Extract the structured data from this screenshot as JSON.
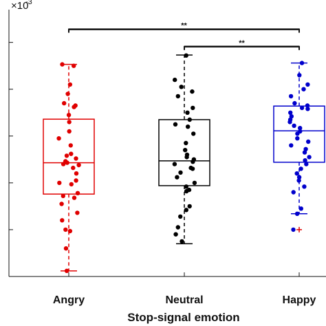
{
  "chart_data": {
    "type": "box",
    "xlabel": "Stop-signal emotion",
    "ylabel": "",
    "y_multiplier_label": "×10",
    "y_multiplier_exponent": "-3",
    "categories": [
      "Angry",
      "Neutral",
      "Happy"
    ],
    "ylim": [
      0,
      5.7
    ],
    "y_tick_values": [
      1,
      2,
      3,
      4,
      5
    ],
    "y_tick_labels_visible": false,
    "grid": false,
    "colors": {
      "Angry": "#e00000",
      "Neutral": "#000000",
      "Happy": "#0000cc",
      "outlier": "#e00000"
    },
    "boxes": [
      {
        "category": "Angry",
        "whisker_low": 0.12,
        "q1": 1.76,
        "median": 2.43,
        "q3": 3.36,
        "whisker_high": 4.53,
        "outliers": [],
        "points": [
          4.53,
          4.5,
          4.1,
          3.9,
          3.7,
          3.65,
          3.62,
          3.45,
          3.3,
          3.1,
          2.95,
          2.8,
          2.62,
          2.58,
          2.52,
          2.46,
          2.43,
          2.4,
          2.38,
          2.32,
          2.2,
          2.05,
          2.0,
          1.97,
          1.78,
          1.72,
          1.68,
          1.55,
          1.36,
          1.2,
          1.0,
          0.97,
          0.6,
          0.12
        ]
      },
      {
        "category": "Neutral",
        "whisker_low": 0.7,
        "q1": 1.94,
        "median": 2.47,
        "q3": 3.35,
        "whisker_high": 4.73,
        "outliers": [],
        "points": [
          4.72,
          4.2,
          4.05,
          3.95,
          3.85,
          3.6,
          3.5,
          3.35,
          3.25,
          3.2,
          3.05,
          2.85,
          2.7,
          2.6,
          2.55,
          2.5,
          2.45,
          2.4,
          2.32,
          2.3,
          2.22,
          2.12,
          2.0,
          1.92,
          1.85,
          1.82,
          1.5,
          1.42,
          1.28,
          1.05,
          0.9,
          0.75
        ]
      },
      {
        "category": "Happy",
        "whisker_low": 1.34,
        "q1": 2.44,
        "median": 3.11,
        "q3": 3.64,
        "whisker_high": 4.56,
        "outliers": [
          1.0
        ],
        "points": [
          4.56,
          4.3,
          4.1,
          4.0,
          3.85,
          3.7,
          3.65,
          3.6,
          3.58,
          3.5,
          3.42,
          3.35,
          3.3,
          3.22,
          3.17,
          3.1,
          3.05,
          2.95,
          2.88,
          2.8,
          2.72,
          2.65,
          2.55,
          2.48,
          2.4,
          2.3,
          2.2,
          2.12,
          2.05,
          1.92,
          1.8,
          1.45,
          1.34,
          1.0
        ]
      }
    ],
    "significance": [
      {
        "from": "Angry",
        "to": "Happy",
        "label": "**",
        "y": 5.28
      },
      {
        "from": "Neutral",
        "to": "Happy",
        "label": "**",
        "y": 4.91
      }
    ]
  }
}
